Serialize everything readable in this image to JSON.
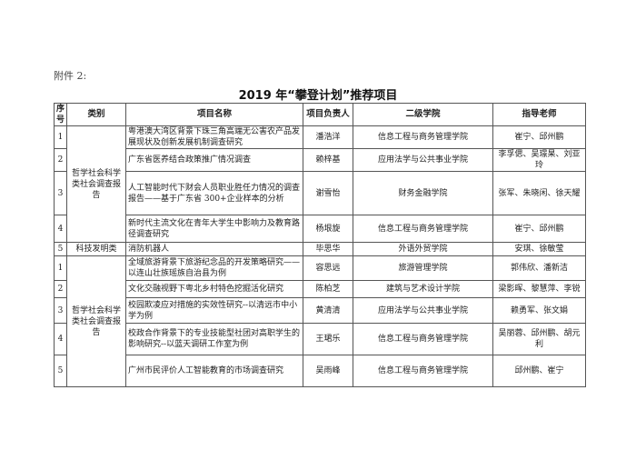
{
  "attachment_label": "附件 2:",
  "title": "2019 年“攀登计划”推荐项目",
  "headers": [
    "序号",
    "类别",
    "项目名称",
    "项目负责人",
    "二级学院",
    "指导老师"
  ],
  "groups": [
    {
      "category": "哲学社会科学类社会调查报告",
      "rows": [
        {
          "seq": "1",
          "name": "粤港澳大湾区背景下珠三角高端无公害农产品发展现状及创新发展机制调查研究",
          "leader": "潘浩洋",
          "college": "信息工程与商务管理学院",
          "advisors": "崔宁、邱州鹏"
        },
        {
          "seq": "2",
          "name": "广东省医养结合政策推广情况调查",
          "leader": "赖梓基",
          "college": "应用法学与公共事业学院",
          "advisors": "李孚偲、吴璟杲、刘亚玲"
        },
        {
          "seq": "3",
          "name": "人工智能时代下财会人员职业胜任力情况的调查报告——基于广东省 300+企业样本的分析",
          "leader": "谢雪怡",
          "college": "财务金融学院",
          "advisors": "张军、朱晓闲、徐天耀"
        },
        {
          "seq": "4",
          "name": "新时代主流文化在青年大学生中影响力及教育路径调查研究",
          "leader": "杨垠旋",
          "college": "信息工程与商务管理学院",
          "advisors": "崔宁、邱州鹏"
        }
      ]
    },
    {
      "category": "科技发明类",
      "rows": [
        {
          "seq": "5",
          "name": "消防机器人",
          "leader": "毕思华",
          "college": "外语外贸学院",
          "advisors": "安琪、徐敏莹"
        }
      ]
    },
    {
      "category": "哲学社会科学类社会调查报告",
      "rows": [
        {
          "seq": "1",
          "name": "全域旅游背景下旅游纪念品的开发策略研究——以连山壮族瑶族自治县为例",
          "leader": "容思远",
          "college": "旅游管理学院",
          "advisors": "郭伟欣、潘新洁"
        },
        {
          "seq": "2",
          "name": "文化交融视野下粤北乡村特色挖掘活化研究",
          "leader": "陈柏芝",
          "college": "建筑与艺术设计学院",
          "advisors": "梁影晖、黎慧萍、李锐"
        },
        {
          "seq": "3",
          "name": "校园欺凌应对措施的实效性研究--以清远市中小学为例",
          "leader": "黄清清",
          "college": "应用法学与公共事业学院",
          "advisors": "赖勇军、张文娟"
        },
        {
          "seq": "4",
          "name": "校政合作背景下的专业技能型社团对高职学生的影响研究--以蓝天调研工作室为例",
          "leader": "王珺乐",
          "college": "信息工程与商务管理学院",
          "advisors": "吴丽蓉、邱州鹏、胡元利"
        },
        {
          "seq": "5",
          "name": "广州市民评价人工智能教育的市场调查研究",
          "leader": "吴雨峰",
          "college": "信息工程与商务管理学院",
          "advisors": "邱州鹏、崔宁"
        }
      ]
    }
  ]
}
